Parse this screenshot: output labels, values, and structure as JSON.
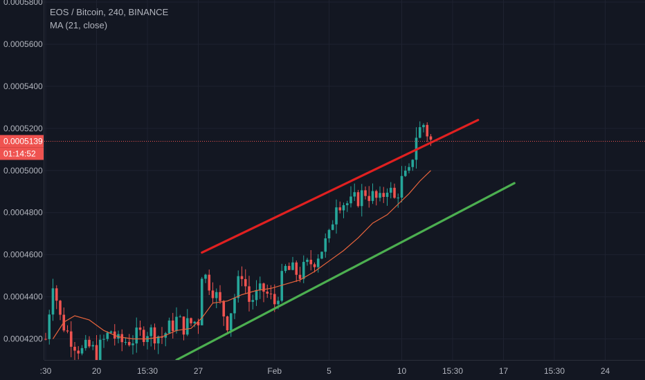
{
  "legend": {
    "symbol_line": "EOS / Bitcoin, 240, BINANCE",
    "indicator_line": "MA (21, close)"
  },
  "price_badge": {
    "price": "0.0005139",
    "countdown": "01:14:52"
  },
  "colors": {
    "background": "#131722",
    "grid": "#1e2230",
    "axis_text": "#b2b5be",
    "candle_up": "#26a69a",
    "candle_down": "#ef5350",
    "ma_line": "#e8643c",
    "resistance_line": "#e02020",
    "support_line": "#4caf50",
    "price_badge": "#ef5350"
  },
  "chart_data": {
    "type": "candlestick",
    "title": "EOS / Bitcoin, 240, BINANCE",
    "y_axis": {
      "ticks": [
        "0.0004200",
        "0.0004400",
        "0.0004600",
        "0.0004800",
        "0.0005000",
        "0.0005200",
        "0.0005400",
        "0.0005600",
        "0.0005800"
      ],
      "range": [
        0.00041,
        0.000581
      ]
    },
    "x_axis": {
      "tick_labels": [
        ":30",
        "20",
        "15:30",
        "27",
        "Feb",
        "5",
        "10",
        "15:30",
        "17",
        "15:30",
        "24"
      ],
      "tick_index": [
        0,
        14,
        28,
        42,
        63,
        78,
        98,
        112,
        126,
        140,
        154
      ]
    },
    "ohlc_anchor_index": [
      0,
      2,
      4,
      6,
      8,
      10,
      12,
      14,
      16,
      18,
      20,
      24,
      28,
      32,
      36,
      38,
      42,
      43,
      46,
      50,
      54,
      56,
      60,
      63,
      66,
      70,
      74,
      78,
      80,
      84,
      88,
      92,
      94,
      96,
      98,
      100,
      102,
      104,
      106
    ],
    "ohlc_anchor_close": [
      0.00042,
      0.000448,
      0.00043,
      0.000423,
      0.000418,
      0.000414,
      0.000416,
      0.000413,
      0.000419,
      0.000424,
      0.000418,
      0.00042,
      0.000424,
      0.000421,
      0.000429,
      0.000426,
      0.000429,
      0.000452,
      0.000444,
      0.000428,
      0.000452,
      0.000438,
      0.000443,
      0.000437,
      0.000453,
      0.000451,
      0.000458,
      0.000468,
      0.000486,
      0.000484,
      0.00049,
      0.000485,
      0.000493,
      0.000486,
      0.000495,
      0.000498,
      0.000517,
      0.000522,
      0.000514
    ],
    "moving_average": {
      "name": "MA (21, close)",
      "x_index": [
        2,
        5,
        8,
        12,
        16,
        20,
        24,
        28,
        32,
        36,
        40,
        43,
        46,
        50,
        54,
        58,
        62,
        66,
        70,
        74,
        78,
        82,
        86,
        90,
        94,
        97,
        100,
        103,
        106
      ],
      "values": [
        0.00042,
        0.000428,
        0.000431,
        0.000429,
        0.000424,
        0.000421,
        0.00042,
        0.00042,
        0.000421,
        0.000424,
        0.000425,
        0.00043,
        0.000437,
        0.000438,
        0.000441,
        0.000443,
        0.000444,
        0.000446,
        0.000448,
        0.000452,
        0.000457,
        0.000462,
        0.000468,
        0.000475,
        0.000479,
        0.000484,
        0.000489,
        0.000495,
        0.0005
      ]
    },
    "trend_lines": [
      {
        "name": "resistance",
        "color": "red",
        "x_index": [
          43,
          119
        ],
        "values": [
          0.000461,
          0.000524
        ]
      },
      {
        "name": "support",
        "color": "green",
        "x_index": [
          36,
          129
        ],
        "values": [
          0.00041,
          0.000494
        ]
      }
    ],
    "current_price": 0.0005139,
    "grid": true
  }
}
